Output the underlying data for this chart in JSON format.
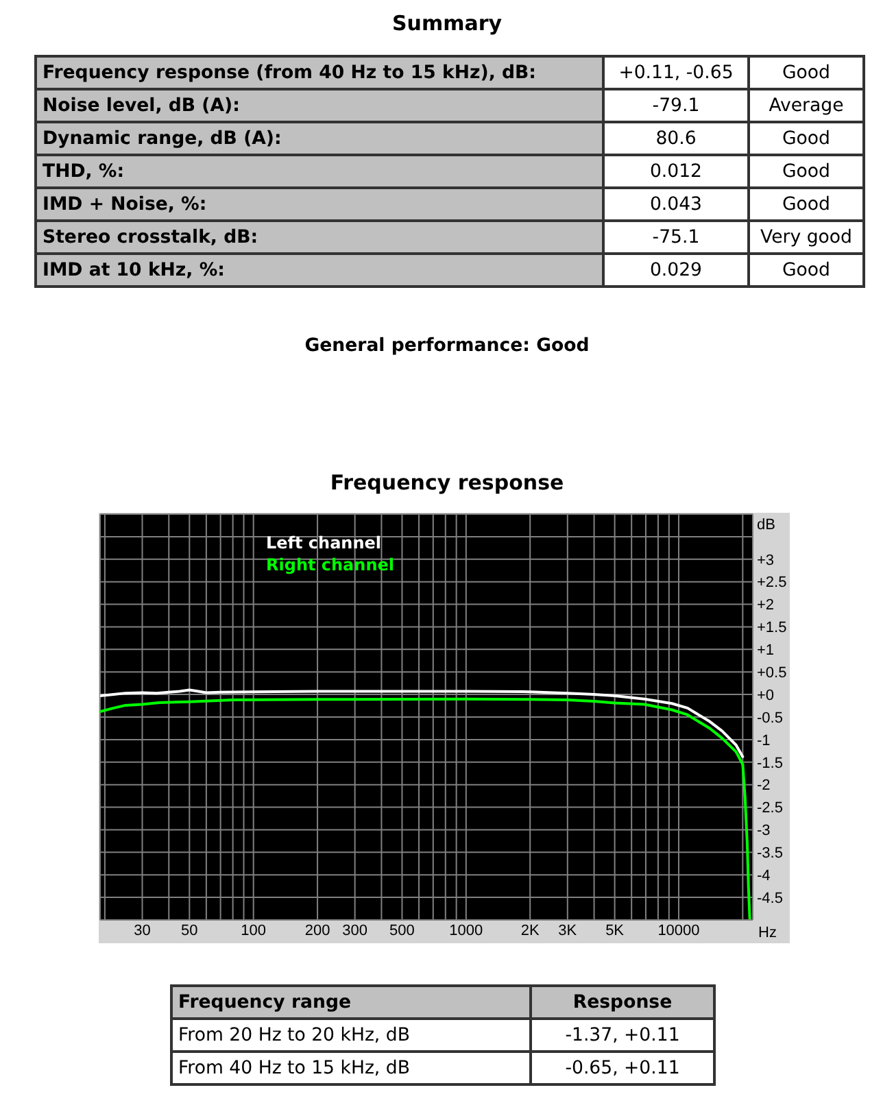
{
  "chart_data": [
    {
      "type": "other",
      "title": "Summary",
      "categories": [
        null,
        null,
        null
      ],
      "annotations": [
        "Frequency response (from 40 Hz to 15 kHz), dB:",
        "+0.11, -0.65",
        "Good",
        "Noise level, dB (A):",
        "-79.1",
        "Average",
        "Dynamic range, dB (A):",
        "80.6",
        "Good",
        "THD, %:",
        "0.012",
        "Good",
        "IMD + Noise, %:",
        "0.043",
        "Good",
        "Stereo crosstalk, dB:",
        "-75.1",
        "Very good",
        "IMD at 10 kHz, %:",
        "0.029",
        "Good",
        "General performance: Good"
      ]
    },
    {
      "type": "line",
      "title": "Frequency response",
      "xlabel": "Hz",
      "ylabel": "dB",
      "log": "x",
      "xlim": [
        19,
        22300
      ],
      "xticks": [
        {
          "value": 20,
          "label": null
        },
        30,
        {
          "value": 40,
          "label": null
        },
        50,
        {
          "value": 60,
          "label": null
        },
        {
          "value": 70,
          "label": null
        },
        {
          "value": 80,
          "label": null
        },
        {
          "value": 90,
          "label": null
        },
        100,
        200,
        300,
        {
          "value": 400,
          "label": null
        },
        500,
        {
          "value": 600,
          "label": null
        },
        {
          "value": 700,
          "label": null
        },
        {
          "value": 800,
          "label": null
        },
        {
          "value": 900,
          "label": null
        },
        1000,
        {
          "value": 2000,
          "label": "2K"
        },
        {
          "value": 3000,
          "label": "3K"
        },
        {
          "value": 4000,
          "label": null
        },
        {
          "value": 5000,
          "label": "5K"
        },
        {
          "value": 6000,
          "label": null
        },
        {
          "value": 7000,
          "label": null
        },
        {
          "value": 8000,
          "label": null
        },
        {
          "value": 9000,
          "label": null
        },
        10000,
        {
          "value": 20000,
          "label": null
        }
      ],
      "ylim": [
        -5,
        4
      ],
      "yticks": [
        {
          "value": 3.5,
          "label": null
        },
        {
          "value": 3,
          "label": "+3"
        },
        {
          "value": 2.5,
          "label": "+2.5"
        },
        {
          "value": 2,
          "label": "+2"
        },
        {
          "value": 1.5,
          "label": "+1.5"
        },
        {
          "value": 1,
          "label": "+1"
        },
        {
          "value": 0.5,
          "label": "+0.5"
        },
        {
          "value": 0,
          "label": "+0"
        },
        -0.5,
        -1,
        -1.5,
        -2,
        -2.5,
        -3,
        -3.5,
        -4,
        -4.5
      ],
      "grid": true,
      "legend": "top left",
      "series": [
        {
          "name": "Left channel",
          "color": "#ffffff",
          "x": [
            19,
            22,
            25,
            30,
            35,
            40,
            45,
            50,
            55,
            60,
            70,
            100,
            200,
            500,
            1000,
            2000,
            3000,
            4000,
            5000,
            6900,
            9300,
            11000,
            12500,
            14000,
            16000,
            18600,
            20000
          ],
          "values": [
            -0.03,
            0,
            0.03,
            0.04,
            0.03,
            0.05,
            0.07,
            0.1,
            0.07,
            0.04,
            0.05,
            0.06,
            0.07,
            0.07,
            0.07,
            0.06,
            0.03,
            0,
            -0.03,
            -0.1,
            -0.2,
            -0.3,
            -0.46,
            -0.6,
            -0.81,
            -1.12,
            -1.38
          ]
        },
        {
          "name": "Right channel",
          "color": "#00ff00",
          "x": [
            19,
            22,
            25,
            30,
            36,
            50,
            80,
            200,
            1000,
            2000,
            3000,
            4000,
            5000,
            6900,
            9300,
            11000,
            12500,
            14000,
            16000,
            18600,
            20000,
            20500,
            21000,
            21300,
            21600
          ],
          "values": [
            -0.38,
            -0.3,
            -0.24,
            -0.22,
            -0.18,
            -0.16,
            -0.12,
            -0.11,
            -0.1,
            -0.11,
            -0.12,
            -0.15,
            -0.19,
            -0.22,
            -0.34,
            -0.45,
            -0.61,
            -0.75,
            -0.97,
            -1.27,
            -1.55,
            -2.27,
            -3.3,
            -4.3,
            -5
          ]
        }
      ]
    },
    {
      "type": "other",
      "categories": [
        "Frequency range",
        "Response"
      ],
      "annotations": [
        "From 20 Hz to 20 kHz, dB",
        "-1.37, +0.11",
        "From 40 Hz to 15 kHz, dB",
        "-0.65, +0.11"
      ]
    }
  ]
}
